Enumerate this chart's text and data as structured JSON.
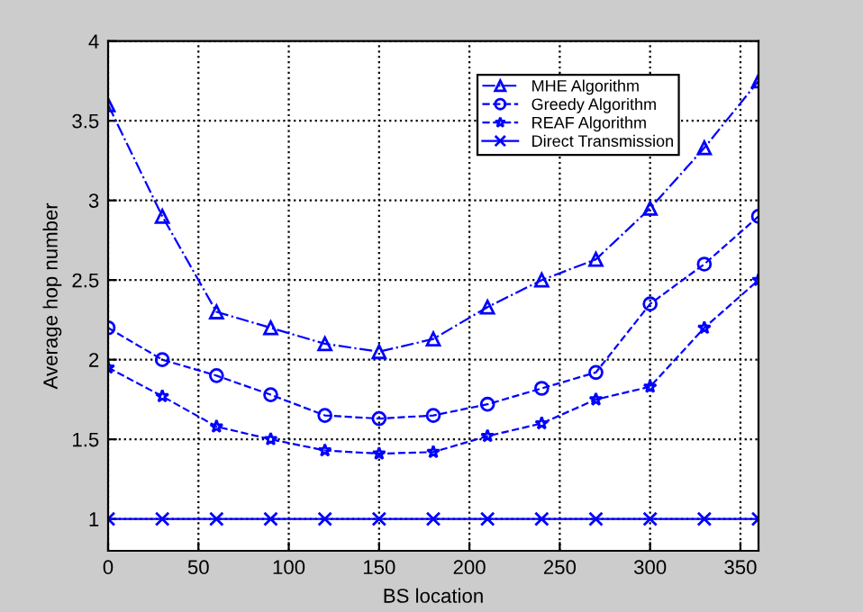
{
  "chart_data": {
    "type": "line",
    "xlabel": "BS location",
    "ylabel": "Average hop number",
    "x": [
      0,
      30,
      60,
      90,
      120,
      150,
      180,
      210,
      240,
      270,
      300,
      330,
      360
    ],
    "series": [
      {
        "name": "MHE Algorithm",
        "color": "#0000ff",
        "marker": "triangle",
        "line_style": "dashdot",
        "values": [
          3.6,
          2.9,
          2.3,
          2.2,
          2.1,
          2.05,
          2.13,
          2.33,
          2.5,
          2.63,
          2.95,
          3.33,
          3.75
        ]
      },
      {
        "name": "Greedy Algorithm",
        "color": "#0000ff",
        "marker": "circle",
        "line_style": "dashed",
        "values": [
          2.2,
          2.0,
          1.9,
          1.78,
          1.65,
          1.63,
          1.65,
          1.72,
          1.82,
          1.92,
          2.35,
          2.6,
          2.9
        ]
      },
      {
        "name": "REAF Algorithm",
        "color": "#0000ff",
        "marker": "star",
        "line_style": "dashed",
        "values": [
          1.95,
          1.77,
          1.58,
          1.5,
          1.43,
          1.41,
          1.42,
          1.52,
          1.6,
          1.75,
          1.83,
          2.2,
          2.5
        ]
      },
      {
        "name": "Direct Transmission",
        "color": "#0000ff",
        "marker": "cross",
        "line_style": "solid",
        "values": [
          1,
          1,
          1,
          1,
          1,
          1,
          1,
          1,
          1,
          1,
          1,
          1,
          1
        ]
      }
    ],
    "xlim": [
      0,
      360
    ],
    "xticks": [
      0,
      50,
      100,
      150,
      200,
      250,
      300,
      350
    ],
    "ylim": [
      0.8,
      4
    ],
    "yticks": [
      1,
      1.5,
      2,
      2.5,
      3,
      3.5,
      4
    ],
    "grid": true,
    "legend": "top right"
  }
}
